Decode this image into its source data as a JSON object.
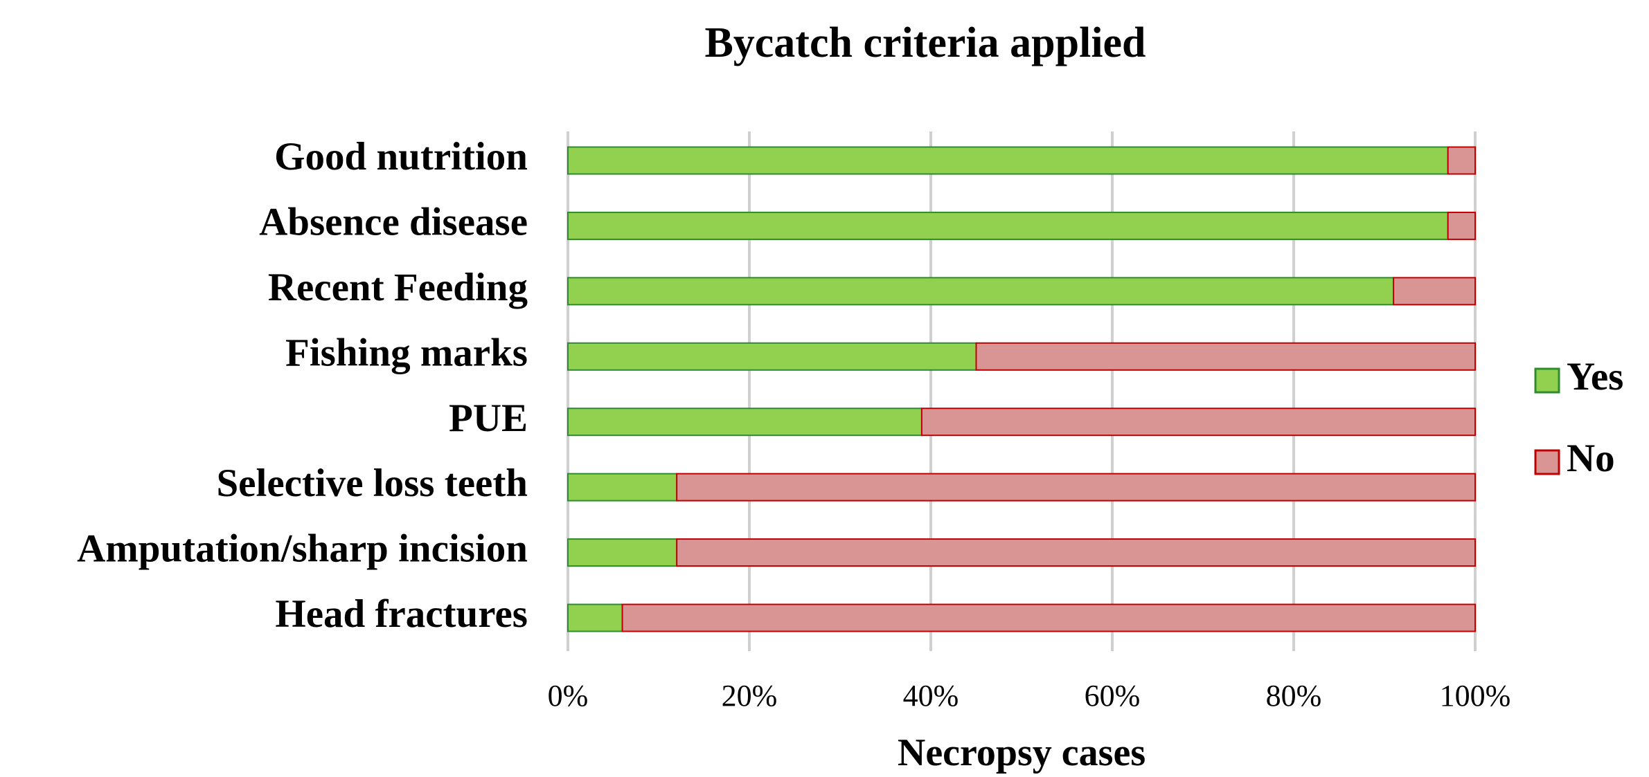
{
  "chart_data": {
    "type": "stacked_bar_horizontal",
    "title": "Bycatch criteria applied",
    "x_label": "Necropsy cases",
    "categories": [
      "Good nutrition",
      "Absence disease",
      "Recent Feeding",
      "Fishing marks",
      "PUE",
      "Selective loss teeth",
      "Amputation/sharp incision",
      "Head fractures"
    ],
    "series": [
      {
        "name": "Yes",
        "color": "#92d050",
        "edge": "#2e8b2e",
        "values": [
          97,
          97,
          91,
          45,
          39,
          12,
          12,
          6
        ]
      },
      {
        "name": "No",
        "color": "#d99594",
        "edge": "#c00000",
        "values": [
          3,
          3,
          9,
          55,
          61,
          88,
          88,
          94
        ]
      }
    ],
    "xlim": [
      0,
      100
    ],
    "xticks": [
      {
        "value": 0,
        "label": "0%"
      },
      {
        "value": 20,
        "label": "20%"
      },
      {
        "value": 40,
        "label": "40%"
      },
      {
        "value": 60,
        "label": "60%"
      },
      {
        "value": 80,
        "label": "80%"
      },
      {
        "value": 100,
        "label": "100%"
      }
    ],
    "grid": true,
    "legend": "right"
  }
}
